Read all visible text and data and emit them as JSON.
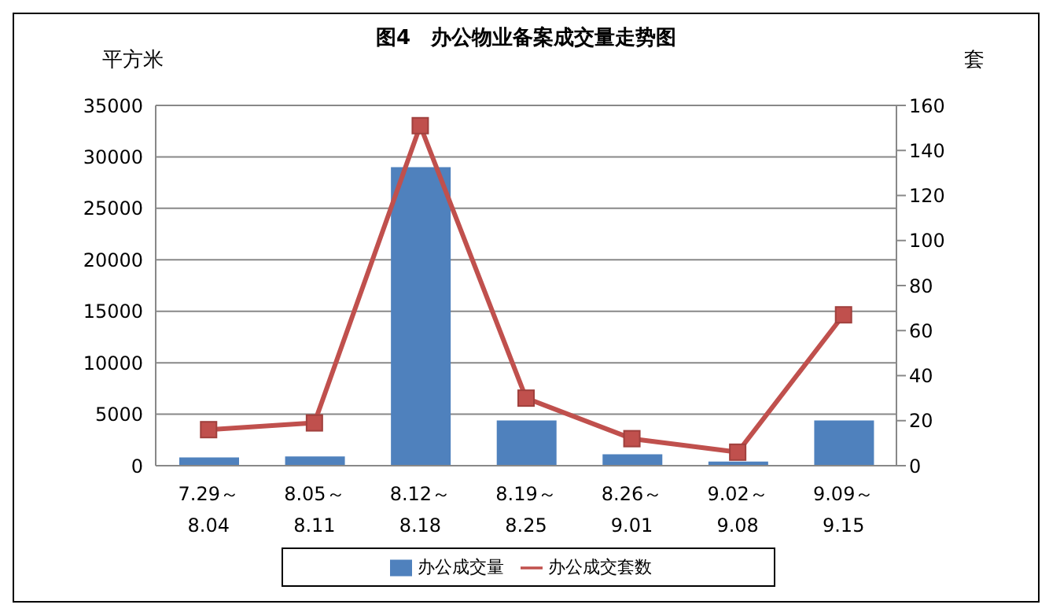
{
  "chart_data": {
    "type": "bar",
    "title": "图4　办公物业备案成交量走势图",
    "ylabel": "平方米",
    "y2label": "套",
    "categories": [
      "7.29～\n8.04",
      "8.05～\n8.11",
      "8.12～\n8.18",
      "8.19～\n8.25",
      "8.26～\n9.01",
      "9.02～\n9.08",
      "9.09～\n9.15"
    ],
    "series": [
      {
        "name": "办公成交量",
        "color": "#4f81bd",
        "values": [
          800,
          900,
          29000,
          4400,
          1100,
          400,
          4400
        ]
      },
      {
        "name": "办公成交套数",
        "type": "line",
        "axis": "y2",
        "color": "#c0504d",
        "marker": "square",
        "values": [
          16,
          19,
          151,
          30,
          12,
          6,
          67
        ]
      }
    ],
    "ylim": [
      0,
      35000
    ],
    "yticks": [
      0,
      5000,
      10000,
      15000,
      20000,
      25000,
      30000,
      35000
    ],
    "y2lim": [
      0,
      160
    ],
    "y2ticks": [
      0,
      20,
      40,
      60,
      80,
      100,
      120,
      140,
      160
    ],
    "grid": "y",
    "legend": "bottom"
  }
}
